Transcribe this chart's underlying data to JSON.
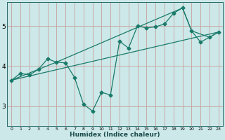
{
  "xlabel": "Humidex (Indice chaleur)",
  "bg_color": "#cce8e8",
  "line_color": "#1a7a6a",
  "xlim": [
    -0.5,
    23.5
  ],
  "ylim": [
    2.5,
    5.6
  ],
  "yticks": [
    3,
    4,
    5
  ],
  "xticks": [
    0,
    1,
    2,
    3,
    4,
    5,
    6,
    7,
    8,
    9,
    10,
    11,
    12,
    13,
    14,
    15,
    16,
    17,
    18,
    19,
    20,
    21,
    22,
    23
  ],
  "line1_x": [
    0,
    1,
    2,
    3,
    4,
    5,
    6,
    7,
    8,
    9,
    10,
    11,
    12,
    13,
    14,
    15,
    16,
    17,
    18,
    19,
    20,
    21,
    22,
    23
  ],
  "line1_y": [
    3.65,
    3.82,
    3.78,
    3.92,
    4.18,
    4.1,
    4.08,
    3.72,
    3.05,
    2.88,
    3.35,
    3.28,
    4.62,
    4.45,
    5.0,
    4.95,
    4.98,
    5.05,
    5.32,
    5.45,
    4.88,
    4.6,
    4.72,
    4.85
  ],
  "line2_x": [
    0,
    23
  ],
  "line2_y": [
    3.65,
    4.85
  ],
  "line3_x": [
    0,
    5,
    19,
    20,
    22,
    23
  ],
  "line3_y": [
    3.65,
    4.1,
    5.45,
    4.88,
    4.72,
    4.85
  ],
  "minor_grid_color": "#b0d8d8",
  "major_grid_color": "#c8a0a0"
}
